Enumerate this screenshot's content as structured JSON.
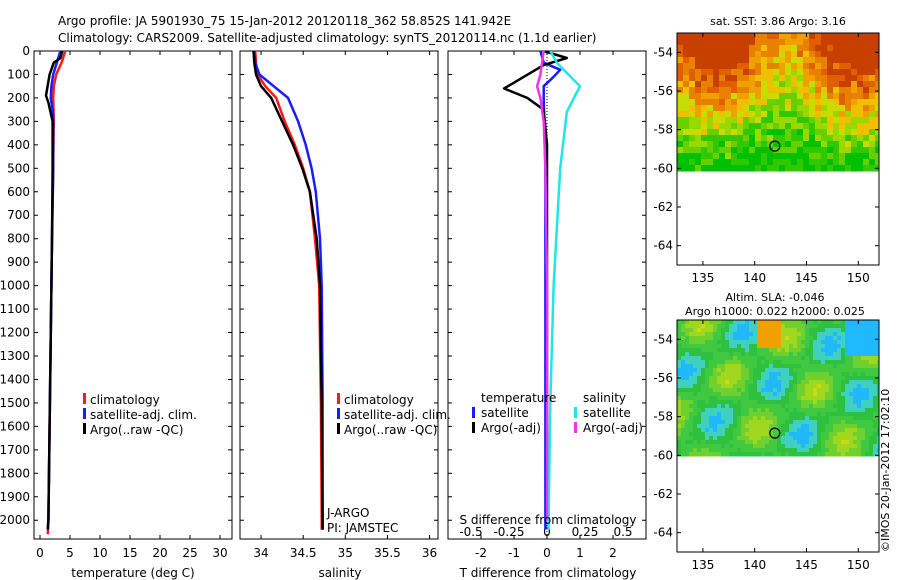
{
  "header": {
    "line1": "Argo profile: JA 5901930_75 15-Jan-2012 20120118_362 58.852S 141.942E",
    "line2": "Climatology: CARS2009. Satellite-adjusted climatology: synTS_20120114.nc (1.1d earlier)"
  },
  "credit": "©IMOS 20-Jan-2012 17:02:10",
  "colors": {
    "climatology": "#ff1a1a",
    "satellite": "#1a1aff",
    "argo": "#000000",
    "sat_salinity": "#22e5e5",
    "argo_salinity_adj": "#ee33ee"
  },
  "chart_data": [
    {
      "type": "line",
      "id": "temperature",
      "xlabel": "temperature (deg C)",
      "ylabel": "",
      "xlim": [
        -1,
        32
      ],
      "ylim": [
        2080,
        0
      ],
      "xticks": [
        "0",
        "5",
        "10",
        "15",
        "20",
        "25",
        "30"
      ],
      "yticks": [
        "0",
        "100",
        "200",
        "300",
        "400",
        "500",
        "600",
        "700",
        "800",
        "900",
        "1000",
        "1100",
        "1200",
        "1300",
        "1400",
        "1500",
        "1600",
        "1700",
        "1800",
        "1900",
        "2000"
      ],
      "legend": {
        "placement": "lower-center",
        "entries": [
          "climatology",
          "satellite-adj. clim.",
          "Argo(..raw -QC)"
        ]
      },
      "series": [
        {
          "name": "climatology",
          "color_key": "climatology",
          "points": [
            [
              4.2,
              0
            ],
            [
              3.6,
              50
            ],
            [
              2.7,
              100
            ],
            [
              2.3,
              150
            ],
            [
              2.2,
              200
            ],
            [
              2.3,
              300
            ],
            [
              2.2,
              500
            ],
            [
              2.0,
              800
            ],
            [
              1.8,
              1200
            ],
            [
              1.6,
              1600
            ],
            [
              1.4,
              2000
            ],
            [
              1.3,
              2060
            ]
          ]
        },
        {
          "name": "satellite-adj. clim.",
          "color_key": "satellite",
          "points": [
            [
              3.4,
              0
            ],
            [
              2.8,
              50
            ],
            [
              2.2,
              100
            ],
            [
              1.9,
              150
            ],
            [
              1.8,
              200
            ],
            [
              2.2,
              270
            ],
            [
              2.2,
              500
            ],
            [
              2.0,
              800
            ],
            [
              1.8,
              1200
            ],
            [
              1.6,
              1600
            ],
            [
              1.4,
              2000
            ],
            [
              1.3,
              2040
            ]
          ]
        },
        {
          "name": "Argo(..raw -QC)",
          "color_key": "argo",
          "points": [
            [
              3.7,
              0
            ],
            [
              3.4,
              30
            ],
            [
              2.3,
              50
            ],
            [
              1.6,
              100
            ],
            [
              1.2,
              160
            ],
            [
              1.0,
              190
            ],
            [
              1.4,
              220
            ],
            [
              2.1,
              300
            ],
            [
              2.1,
              500
            ],
            [
              2.0,
              800
            ],
            [
              1.8,
              1200
            ],
            [
              1.6,
              1600
            ],
            [
              1.4,
              2000
            ],
            [
              1.3,
              2040
            ]
          ]
        }
      ]
    },
    {
      "type": "line",
      "id": "salinity",
      "xlabel": "salinity",
      "ylabel": "",
      "xlim": [
        33.75,
        36.1
      ],
      "ylim": [
        2080,
        0
      ],
      "xticks": [
        "34",
        "34.5",
        "35",
        "35.5",
        "36"
      ],
      "legend": {
        "placement": "lower-right",
        "entries": [
          "climatology",
          "satellite-adj. clim.",
          "Argo(..raw -QC)"
        ]
      },
      "annotations": [
        "J-ARGO",
        "PI: JAMSTEC"
      ],
      "series": [
        {
          "name": "climatology",
          "color_key": "climatology",
          "points": [
            [
              33.93,
              0
            ],
            [
              33.94,
              50
            ],
            [
              33.96,
              100
            ],
            [
              34.05,
              150
            ],
            [
              34.18,
              200
            ],
            [
              34.28,
              300
            ],
            [
              34.4,
              400
            ],
            [
              34.5,
              500
            ],
            [
              34.58,
              600
            ],
            [
              34.64,
              800
            ],
            [
              34.69,
              1000
            ],
            [
              34.71,
              1500
            ],
            [
              34.72,
              2000
            ],
            [
              34.72,
              2040
            ]
          ]
        },
        {
          "name": "satellite-adj. clim.",
          "color_key": "satellite",
          "points": [
            [
              33.92,
              0
            ],
            [
              33.93,
              50
            ],
            [
              33.98,
              100
            ],
            [
              34.15,
              150
            ],
            [
              34.32,
              200
            ],
            [
              34.44,
              300
            ],
            [
              34.53,
              400
            ],
            [
              34.6,
              500
            ],
            [
              34.65,
              600
            ],
            [
              34.7,
              800
            ],
            [
              34.72,
              1000
            ],
            [
              34.73,
              1500
            ],
            [
              34.73,
              2000
            ],
            [
              34.73,
              2040
            ]
          ]
        },
        {
          "name": "Argo(..raw -QC)",
          "color_key": "argo",
          "points": [
            [
              33.91,
              0
            ],
            [
              33.92,
              50
            ],
            [
              33.94,
              100
            ],
            [
              34.0,
              150
            ],
            [
              34.12,
              200
            ],
            [
              34.25,
              300
            ],
            [
              34.38,
              400
            ],
            [
              34.49,
              500
            ],
            [
              34.58,
              600
            ],
            [
              34.66,
              800
            ],
            [
              34.7,
              1000
            ],
            [
              34.72,
              1500
            ],
            [
              34.73,
              2000
            ],
            [
              34.73,
              2040
            ]
          ]
        }
      ]
    },
    {
      "type": "line",
      "id": "difference",
      "xlabel": "T difference from climatology",
      "top_label": "S difference from climatology",
      "xlim": [
        -3,
        3
      ],
      "ylim": [
        2080,
        0
      ],
      "xticks": [
        "-2",
        "-1",
        "0",
        "1",
        "2"
      ],
      "top_ticks": [
        "-0.5",
        "-0.25",
        "0",
        "0.25",
        "0.5"
      ],
      "legend": {
        "placement": "lower-center",
        "temperature_title": "temperature",
        "salinity_title": "salinity",
        "entries": [
          "satellite",
          "Argo(-adj)",
          "satellite",
          "Argo(-adj)"
        ]
      },
      "series": [
        {
          "name": "T satellite",
          "color_key": "satellite",
          "points": [
            [
              -0.2,
              0
            ],
            [
              -0.1,
              50
            ],
            [
              0.4,
              80
            ],
            [
              0.2,
              110
            ],
            [
              -0.1,
              150
            ],
            [
              -0.1,
              200
            ],
            [
              -0.05,
              500
            ],
            [
              -0.05,
              1000
            ],
            [
              -0.05,
              2000
            ],
            [
              -0.05,
              2040
            ]
          ]
        },
        {
          "name": "T Argo(-adj)",
          "color_key": "argo",
          "points": [
            [
              -0.1,
              0
            ],
            [
              0.6,
              30
            ],
            [
              -0.1,
              60
            ],
            [
              -1.3,
              160
            ],
            [
              -0.6,
              200
            ],
            [
              -0.1,
              250
            ],
            [
              0,
              400
            ],
            [
              0,
              1000
            ],
            [
              0,
              2000
            ]
          ]
        },
        {
          "name": "S satellite",
          "color_key": "sat_salinity",
          "points": [
            [
              0.1,
              0
            ],
            [
              0.3,
              50
            ],
            [
              1.0,
              150
            ],
            [
              0.6,
              260
            ],
            [
              0.4,
              500
            ],
            [
              0.2,
              1000
            ],
            [
              0.1,
              1500
            ],
            [
              0.05,
              2000
            ],
            [
              0.05,
              2040
            ]
          ]
        },
        {
          "name": "S Argo(-adj)",
          "color_key": "argo_salinity_adj",
          "points": [
            [
              -0.1,
              0
            ],
            [
              -0.2,
              100
            ],
            [
              -0.3,
              150
            ],
            [
              -0.2,
              200
            ],
            [
              -0.1,
              300
            ],
            [
              -0.05,
              500
            ],
            [
              0,
              1000
            ],
            [
              0,
              2000
            ]
          ]
        }
      ]
    },
    {
      "type": "heatmap",
      "id": "sst_map",
      "title": "sat. SST: 3.86 Argo: 3.16",
      "xlim": [
        132.5,
        152
      ],
      "ylim": [
        -65,
        -53
      ],
      "xticks": [
        "135",
        "140",
        "145",
        "150"
      ],
      "yticks": [
        "-54",
        "-56",
        "-58",
        "-60",
        "-62",
        "-64"
      ],
      "data_extent_lat_min": -60,
      "marker": {
        "lon": 141.942,
        "lat": -58.852
      }
    },
    {
      "type": "heatmap",
      "id": "sla_map",
      "title": "Altim. SLA: -0.046",
      "subtitle": "Argo h1000: 0.022 h2000: 0.025",
      "xlim": [
        132.5,
        152
      ],
      "ylim": [
        -65,
        -53
      ],
      "xticks": [
        "135",
        "140",
        "145",
        "150"
      ],
      "yticks": [
        "-54",
        "-56",
        "-58",
        "-60",
        "-62",
        "-64"
      ],
      "data_extent_lat_min": -60,
      "marker": {
        "lon": 141.942,
        "lat": -58.852
      }
    }
  ]
}
